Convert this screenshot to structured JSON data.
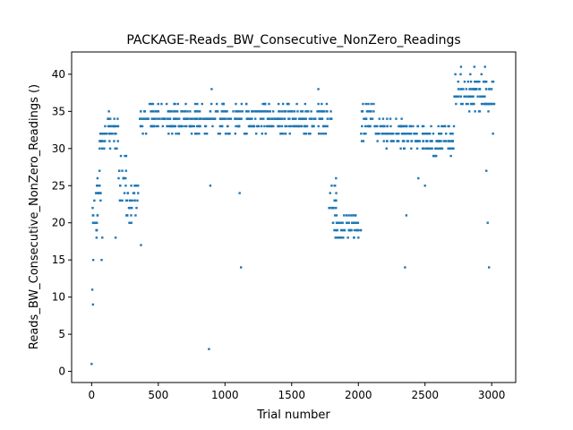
{
  "chart_data": {
    "type": "scatter",
    "title": "PACKAGE-Reads_BW_Consecutive_NonZero_Readings",
    "xlabel": "Trial number",
    "ylabel": "Reads_BW_Consecutive_NonZero_Readings ()",
    "xlim": [
      -150,
      3180
    ],
    "ylim": [
      -1.5,
      43
    ],
    "xticks": [
      0,
      500,
      1000,
      1500,
      2000,
      2500,
      3000
    ],
    "yticks": [
      0,
      5,
      10,
      15,
      20,
      25,
      30,
      35,
      40
    ],
    "grid": false,
    "marker_color": "#1f77b4",
    "series": [
      {
        "segments": [
          {
            "x_start": 0,
            "x_end": 45,
            "y_levels": [
              17,
              18,
              19,
              20,
              21,
              22,
              23
            ]
          },
          {
            "x_start": 20,
            "x_end": 70,
            "y_levels": [
              22,
              23,
              24,
              25,
              26,
              27,
              28
            ]
          },
          {
            "x_start": 60,
            "x_end": 110,
            "y_levels": [
              29,
              30,
              31,
              32,
              33
            ]
          },
          {
            "x_start": 100,
            "x_end": 200,
            "y_levels": [
              30,
              31,
              32,
              33,
              34,
              35
            ]
          },
          {
            "x_start": 200,
            "x_end": 260,
            "y_levels": [
              22,
              23,
              24,
              25,
              26,
              27,
              28,
              29,
              30
            ]
          },
          {
            "x_start": 260,
            "x_end": 350,
            "y_levels": [
              20,
              21,
              22,
              23,
              24,
              25,
              26
            ]
          },
          {
            "x_start": 360,
            "x_end": 650,
            "y_levels": [
              32,
              33,
              34,
              35,
              36
            ]
          },
          {
            "x_start": 650,
            "x_end": 1800,
            "y_levels": [
              32,
              33,
              34,
              35,
              36
            ]
          },
          {
            "x_start": 1780,
            "x_end": 1840,
            "y_levels": [
              20,
              21,
              22,
              23,
              24,
              25,
              26
            ]
          },
          {
            "x_start": 1820,
            "x_end": 2020,
            "y_levels": [
              18,
              19,
              20,
              21
            ]
          },
          {
            "x_start": 2020,
            "x_end": 2120,
            "y_levels": [
              31,
              32,
              33,
              34,
              35,
              36
            ]
          },
          {
            "x_start": 2120,
            "x_end": 2400,
            "y_levels": [
              30,
              31,
              32,
              33,
              34
            ]
          },
          {
            "x_start": 2400,
            "x_end": 2720,
            "y_levels": [
              29,
              30,
              31,
              32,
              33
            ]
          },
          {
            "x_start": 2720,
            "x_end": 3020,
            "y_levels": [
              35,
              36,
              37,
              38,
              39,
              40
            ]
          }
        ],
        "outliers": [
          [
            0,
            1
          ],
          [
            5,
            11
          ],
          [
            10,
            9
          ],
          [
            12,
            15
          ],
          [
            75,
            15
          ],
          [
            80,
            18
          ],
          [
            180,
            18
          ],
          [
            370,
            17
          ],
          [
            880,
            3
          ],
          [
            890,
            25
          ],
          [
            1110,
            24
          ],
          [
            1120,
            14
          ],
          [
            2350,
            14
          ],
          [
            2360,
            21
          ],
          [
            2960,
            27
          ],
          [
            2970,
            20
          ],
          [
            2980,
            14
          ],
          [
            2500,
            25
          ],
          [
            2450,
            26
          ],
          [
            1700,
            38
          ],
          [
            900,
            38
          ],
          [
            2770,
            41
          ],
          [
            2870,
            41
          ],
          [
            2950,
            41
          ],
          [
            3010,
            32
          ]
        ]
      }
    ]
  }
}
